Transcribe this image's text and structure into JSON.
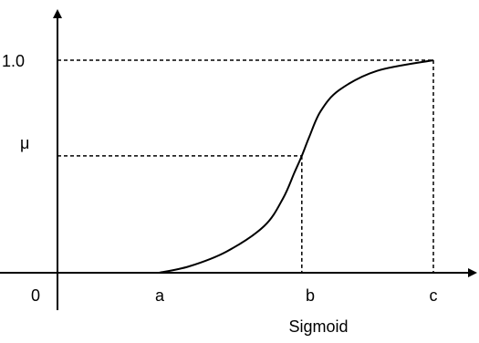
{
  "chart_data": {
    "type": "line",
    "title": "",
    "caption": "Sigmoid",
    "xlabel": "",
    "ylabel": "",
    "x_ticks": [
      "0",
      "a",
      "b",
      "c"
    ],
    "y_ticks": [
      "μ",
      "1.0"
    ],
    "xlim": [
      0,
      1
    ],
    "ylim": [
      0,
      1.0
    ],
    "key_points": {
      "a": 0.27,
      "b": 0.65,
      "c": 1.0,
      "mu": 0.55
    },
    "series": [
      {
        "x": [
          0.27,
          0.35,
          0.45,
          0.55,
          0.6,
          0.63,
          0.65,
          0.67,
          0.7,
          0.75,
          0.85,
          1.0
        ],
        "y": [
          0.0,
          0.03,
          0.1,
          0.22,
          0.35,
          0.47,
          0.55,
          0.64,
          0.76,
          0.86,
          0.95,
          1.0
        ]
      }
    ],
    "guides": [
      "dashed lines from (b, μ) to the axes",
      "dashed lines from (c, 1.0) to the axes"
    ],
    "grid": false,
    "axis_color": "#000000",
    "curve_color": "#000000"
  }
}
